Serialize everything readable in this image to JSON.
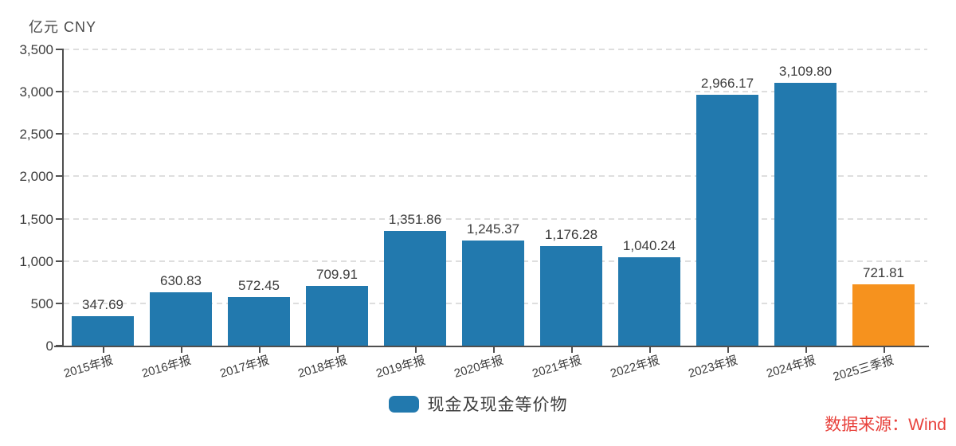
{
  "unit_label": "亿元 CNY",
  "source_label": "数据来源：Wind",
  "colors": {
    "bar_default": "#2279AE",
    "bar_highlight": "#F6921E",
    "axis": "#4F4F4F",
    "grid_line": "#DEDEDE",
    "text": "#3C3C3C",
    "source_text": "#E8423C"
  },
  "legend": {
    "label": "现金及现金等价物",
    "swatch_color": "#2279AE",
    "position": "bottom-center"
  },
  "chart_data": {
    "type": "bar",
    "title": "",
    "unit": "亿元 CNY",
    "xlabel": "",
    "ylabel": "亿元 CNY",
    "categories": [
      "2015年报",
      "2016年报",
      "2017年报",
      "2018年报",
      "2019年报",
      "2020年报",
      "2021年报",
      "2022年报",
      "2023年报",
      "2024年报",
      "2025三季报"
    ],
    "values": [
      347.69,
      630.83,
      572.45,
      709.91,
      1351.86,
      1245.37,
      1176.28,
      1040.24,
      2966.17,
      3109.8,
      721.81
    ],
    "value_labels": [
      "347.69",
      "630.83",
      "572.45",
      "709.91",
      "1,351.86",
      "1,245.37",
      "1,176.28",
      "1,040.24",
      "2,966.17",
      "3,109.80",
      "721.81"
    ],
    "bar_colors": [
      "#2279AE",
      "#2279AE",
      "#2279AE",
      "#2279AE",
      "#2279AE",
      "#2279AE",
      "#2279AE",
      "#2279AE",
      "#2279AE",
      "#2279AE",
      "#F6921E"
    ],
    "ylim": [
      0,
      3500
    ],
    "yticks": [
      0,
      500,
      1000,
      1500,
      2000,
      2500,
      3000,
      3500
    ],
    "ytick_labels": [
      "0",
      "500",
      "1,000",
      "1,500",
      "2,000",
      "2,500",
      "3,000",
      "3,500"
    ],
    "grid": "horizontal-dashed",
    "legend": [
      "现金及现金等价物"
    ],
    "legend_position": "bottom-center"
  }
}
